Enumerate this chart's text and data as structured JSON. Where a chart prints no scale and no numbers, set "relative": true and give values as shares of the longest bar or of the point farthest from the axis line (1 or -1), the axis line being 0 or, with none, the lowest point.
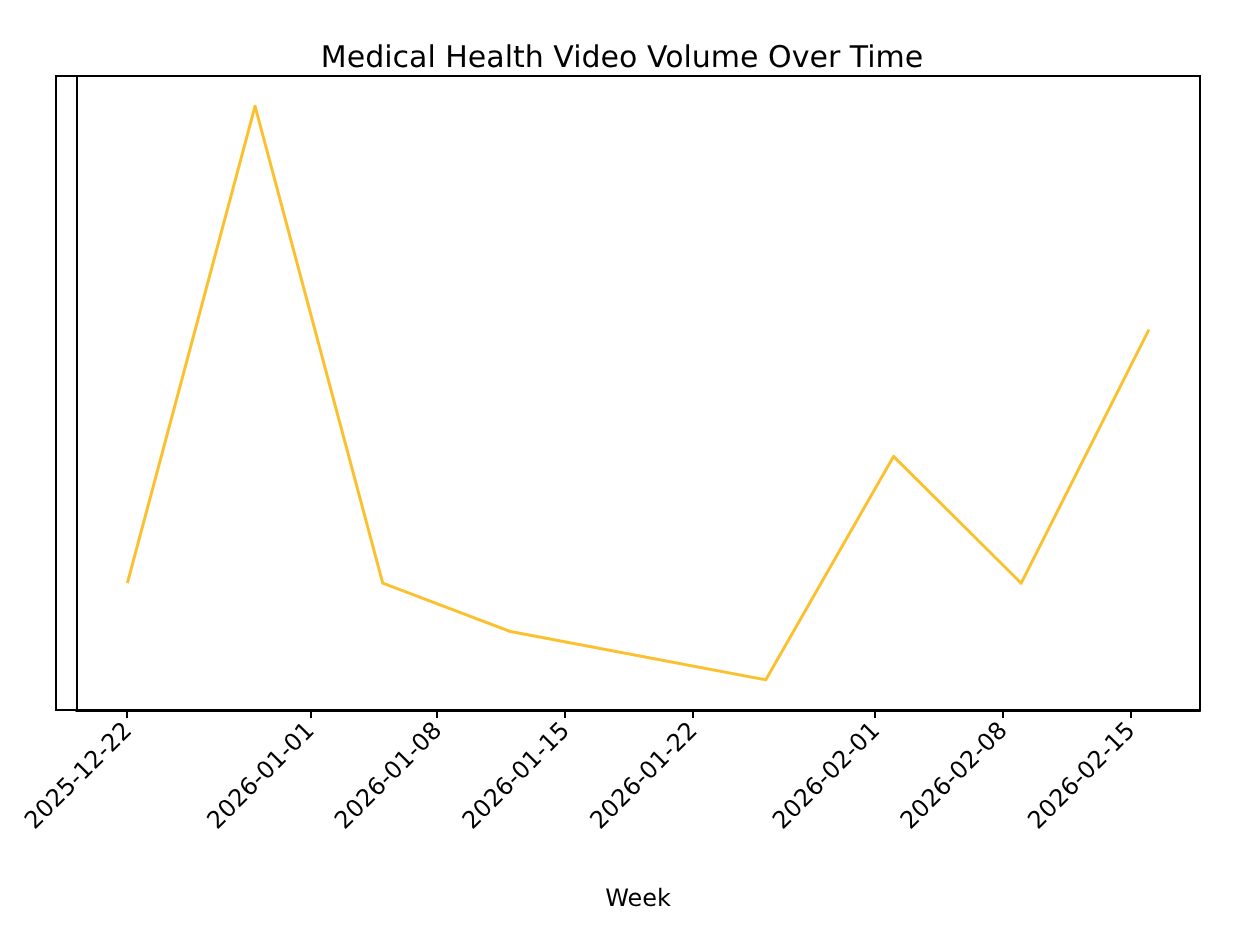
{
  "chart_data": {
    "type": "line",
    "title": "Medical Health Video Volume Over Time",
    "xlabel": "Week",
    "relative": true,
    "x": [
      "2025-12-22",
      "2025-12-29",
      "2026-01-05",
      "2026-01-12",
      "2026-01-26",
      "2026-02-02",
      "2026-02-09",
      "2026-02-16"
    ],
    "series": [
      {
        "color": "#fbc02d",
        "values": [
          0.21,
          1,
          0.21,
          0.13,
          0.05,
          0.42,
          0.21,
          0.63
        ]
      }
    ],
    "xlim": [
      "2025-12-19T04:48",
      "2026-02-18T19:12"
    ],
    "xticks": [
      "2025-12-22",
      "2026-01-01",
      "2026-01-08",
      "2026-01-15",
      "2026-01-22",
      "2026-02-01",
      "2026-02-08",
      "2026-02-15"
    ],
    "grid": false,
    "marker": "none",
    "line_style": "solid"
  }
}
